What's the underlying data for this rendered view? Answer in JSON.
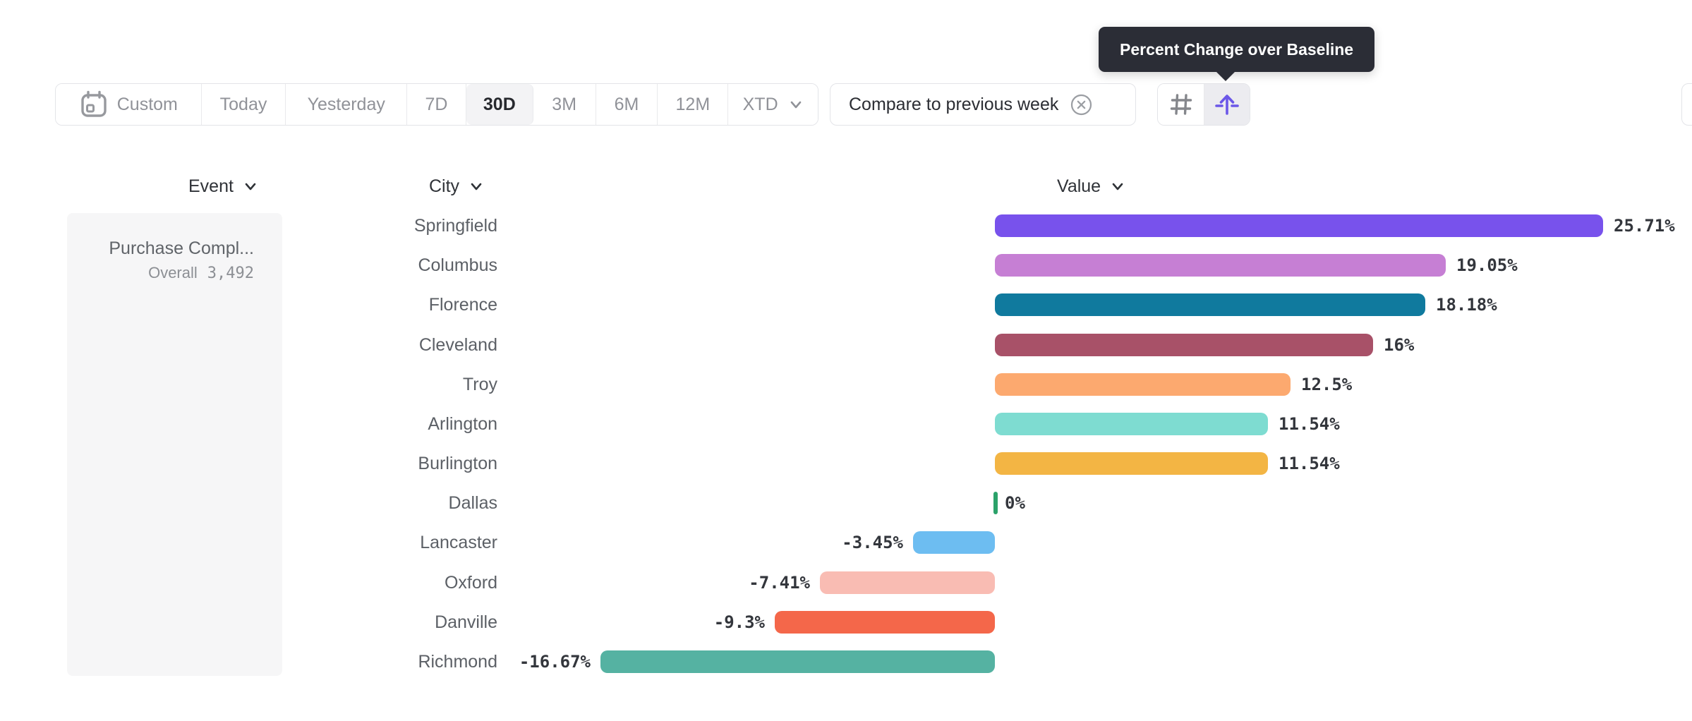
{
  "tooltip": {
    "text": "Percent Change over Baseline"
  },
  "toolbar": {
    "date_ranges": [
      {
        "label": "Custom",
        "selected": false,
        "icon": "calendar-icon"
      },
      {
        "label": "Today",
        "selected": false
      },
      {
        "label": "Yesterday",
        "selected": false
      },
      {
        "label": "7D",
        "selected": false
      },
      {
        "label": "30D",
        "selected": true
      },
      {
        "label": "3M",
        "selected": false
      },
      {
        "label": "6M",
        "selected": false
      },
      {
        "label": "12M",
        "selected": false
      },
      {
        "label": "XTD",
        "selected": false,
        "chevron": true
      }
    ],
    "compare_chip": {
      "label": "Compare to previous week",
      "close_icon": "circle-x-icon"
    },
    "view_toggle": [
      {
        "icon": "hash-icon",
        "selected": false
      },
      {
        "icon": "baseline-arrow-icon",
        "selected": true,
        "accent": "#6b57e8"
      }
    ]
  },
  "columns": {
    "event": "Event",
    "city": "City",
    "value": "Value"
  },
  "event_panel": {
    "title": "Purchase Compl...",
    "overall_label": "Overall",
    "overall_value": "3,492"
  },
  "chart_data": {
    "type": "bar",
    "orientation": "horizontal",
    "title": "Percent Change over Baseline",
    "value_unit": "percent",
    "xlim": [
      -16.67,
      25.71
    ],
    "grid": false,
    "categories": [
      "Springfield",
      "Columbus",
      "Florence",
      "Cleveland",
      "Troy",
      "Arlington",
      "Burlington",
      "Dallas",
      "Lancaster",
      "Oxford",
      "Danville",
      "Richmond"
    ],
    "values": [
      25.71,
      19.05,
      18.18,
      16,
      12.5,
      11.54,
      11.54,
      0,
      -3.45,
      -7.41,
      -9.3,
      -16.67
    ],
    "labels": [
      "25.71%",
      "19.05%",
      "18.18%",
      "16%",
      "12.5%",
      "11.54%",
      "11.54%",
      "0%",
      "-3.45%",
      "-7.41%",
      "-9.3%",
      "-16.67%"
    ],
    "colors": [
      "#7852ec",
      "#c67fd4",
      "#107a9e",
      "#a85168",
      "#fca96f",
      "#7edcd1",
      "#f3b544",
      "#2ba26a",
      "#6dbdf1",
      "#f9bcb3",
      "#f4674a",
      "#55b2a2"
    ]
  },
  "ui_colors": {
    "tooltip_bg": "#2b2d36",
    "selected_bg": "#f3f3f5",
    "border": "#e3e4e8",
    "accent": "#6b57e8"
  }
}
